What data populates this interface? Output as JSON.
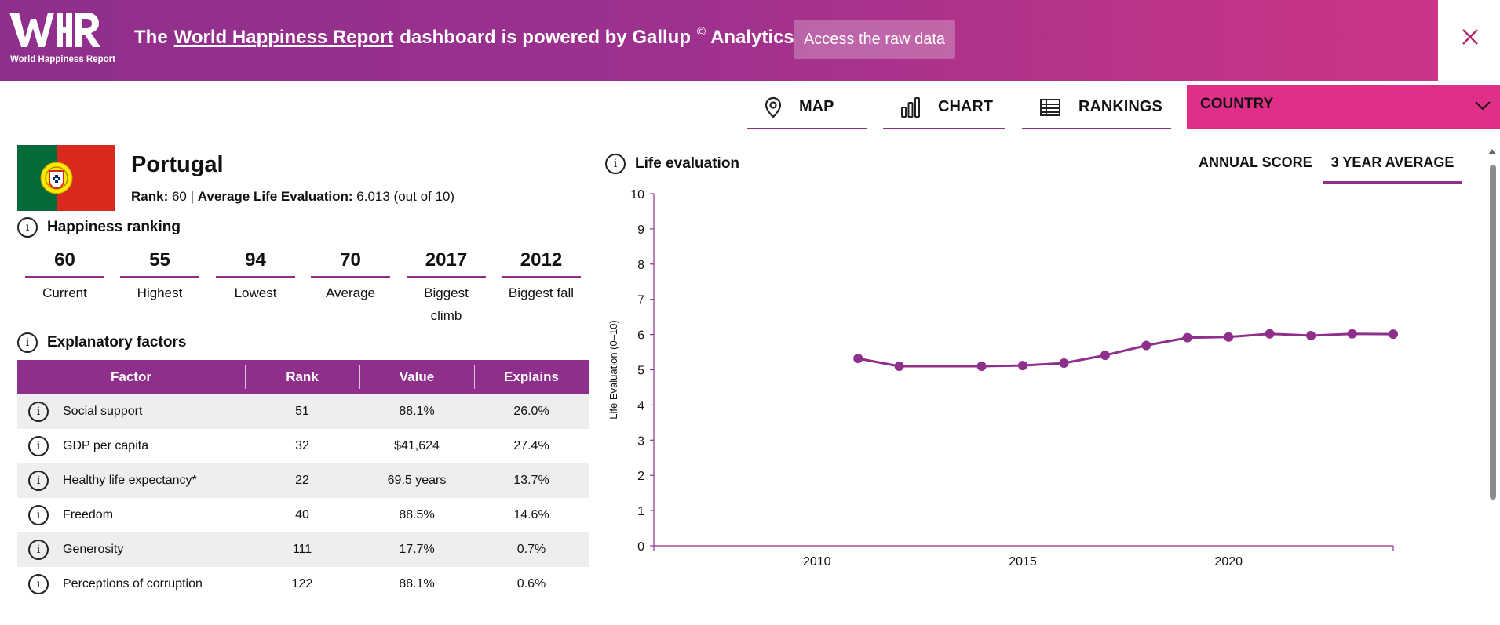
{
  "banner": {
    "logo_text": "World Happiness Report",
    "text_the": "The",
    "text_link": "World Happiness Report",
    "text_mid": "dashboard is powered by Gallup",
    "text_sup": "©",
    "text_end": "Analytics",
    "raw_data_button": "Access the raw data",
    "close_icon": "close-icon"
  },
  "nav": {
    "map": "MAP",
    "chart": "CHART",
    "rankings": "RANKINGS",
    "country_select": "COUNTRY"
  },
  "country": {
    "name": "Portugal",
    "rank_label": "Rank:",
    "rank_value": "60",
    "separator": "|",
    "avg_label": "Average Life Evaluation:",
    "avg_value": "6.013 (out of 10)"
  },
  "ranking": {
    "title": "Happiness ranking",
    "items": [
      {
        "value": "60",
        "label": "Current"
      },
      {
        "value": "55",
        "label": "Highest"
      },
      {
        "value": "94",
        "label": "Lowest"
      },
      {
        "value": "70",
        "label": "Average"
      },
      {
        "value": "2017",
        "label": "Biggest climb"
      },
      {
        "value": "2012",
        "label": "Biggest fall"
      }
    ]
  },
  "factors": {
    "title": "Explanatory factors",
    "headers": [
      "Factor",
      "Rank",
      "Value",
      "Explains"
    ],
    "rows": [
      {
        "factor": "Social support",
        "rank": "51",
        "value": "88.1%",
        "explains": "26.0%"
      },
      {
        "factor": "GDP per capita",
        "rank": "32",
        "value": "$41,624",
        "explains": "27.4%"
      },
      {
        "factor": "Healthy life expectancy*",
        "rank": "22",
        "value": "69.5 years",
        "explains": "13.7%"
      },
      {
        "factor": "Freedom",
        "rank": "40",
        "value": "88.5%",
        "explains": "14.6%"
      },
      {
        "factor": "Generosity",
        "rank": "111",
        "value": "17.7%",
        "explains": "0.7%"
      },
      {
        "factor": "Perceptions of corruption",
        "rank": "122",
        "value": "88.1%",
        "explains": "0.6%"
      }
    ]
  },
  "chart": {
    "title": "Life evaluation",
    "toggle_annual": "ANNUAL SCORE",
    "toggle_avg": "3 YEAR AVERAGE",
    "active_toggle": "3 YEAR AVERAGE"
  },
  "colors": {
    "brand_purple": "#8f2f8c",
    "brand_pink": "#df2f89",
    "line": "#8f2f8c"
  },
  "chart_data": {
    "type": "line",
    "title": "",
    "xlabel": "",
    "ylabel": "Life Evaluation (0–10)",
    "ylim": [
      0,
      10
    ],
    "xlim": [
      2006,
      2024
    ],
    "yticks": [
      "0",
      "1",
      "2",
      "3",
      "4",
      "5",
      "6",
      "7",
      "8",
      "9",
      "10"
    ],
    "xticks": [
      2010,
      2015,
      2020
    ],
    "grid": false,
    "series": [
      {
        "x": [
          2011,
          2012,
          2014,
          2015,
          2016,
          2017,
          2018,
          2019,
          2020,
          2021,
          2022,
          2023,
          2024
        ],
        "y": [
          5.32,
          5.1,
          5.1,
          5.12,
          5.19,
          5.41,
          5.69,
          5.91,
          5.93,
          6.02,
          5.97,
          6.02,
          6.01
        ]
      }
    ]
  }
}
